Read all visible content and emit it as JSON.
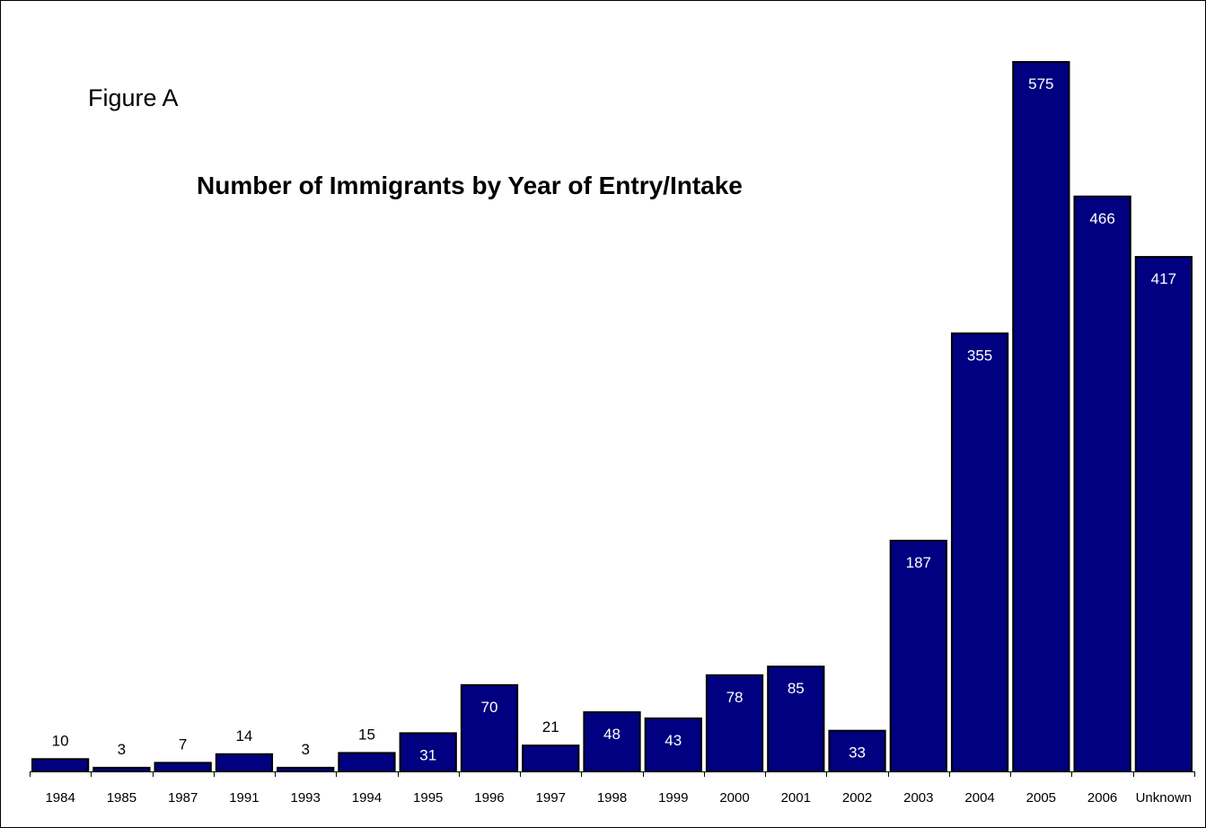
{
  "figure_label": "Figure A",
  "colors": {
    "bar_fill": "#000080",
    "bar_stroke": "#000000",
    "inside_label": "#ffffff",
    "outside_label": "#000000",
    "axis": "#000000"
  },
  "chart_data": {
    "type": "bar",
    "title": "Number of Immigrants by Year of Entry/Intake",
    "xlabel": "",
    "ylabel": "",
    "categories": [
      "1984",
      "1985",
      "1987",
      "1991",
      "1993",
      "1994",
      "1995",
      "1996",
      "1997",
      "1998",
      "1999",
      "2000",
      "2001",
      "2002",
      "2003",
      "2004",
      "2005",
      "2006",
      "Unknown"
    ],
    "values": [
      10,
      3,
      7,
      14,
      3,
      15,
      31,
      70,
      21,
      48,
      43,
      78,
      85,
      33,
      187,
      355,
      575,
      466,
      417
    ],
    "ylim": [
      0,
      575
    ],
    "grid": false,
    "legend": "none",
    "data_labels": true
  }
}
